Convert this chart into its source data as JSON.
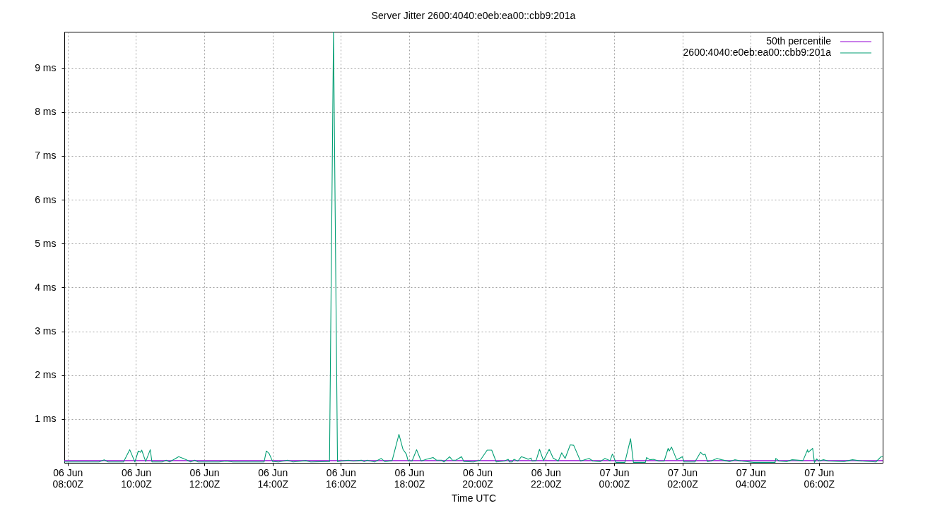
{
  "chart_data": {
    "type": "line",
    "title": "Server Jitter 2600:4040:e0eb:ea00::cbb9:201a",
    "xlabel": "Time UTC",
    "xlim": [
      "--06-06T07:54",
      "--06-07T07:52"
    ],
    "xticks": [
      {
        "value": "--06-06T08:00",
        "label": "06 Jun\n08:00Z"
      },
      {
        "value": "--06-06T10:00",
        "label": "06 Jun\n10:00Z"
      },
      {
        "value": "--06-06T12:00",
        "label": "06 Jun\n12:00Z"
      },
      {
        "value": "--06-06T14:00",
        "label": "06 Jun\n14:00Z"
      },
      {
        "value": "--06-06T16:00",
        "label": "06 Jun\n16:00Z"
      },
      {
        "value": "--06-06T18:00",
        "label": "06 Jun\n18:00Z"
      },
      {
        "value": "--06-06T20:00",
        "label": "06 Jun\n20:00Z"
      },
      {
        "value": "--06-06T22:00",
        "label": "06 Jun\n22:00Z"
      },
      {
        "value": "--06-07T00:00",
        "label": "07 Jun\n00:00Z"
      },
      {
        "value": "--06-07T02:00",
        "label": "07 Jun\n02:00Z"
      },
      {
        "value": "--06-07T04:00",
        "label": "07 Jun\n04:00Z"
      },
      {
        "value": "--06-07T06:00",
        "label": "07 Jun\n06:00Z"
      }
    ],
    "ylim": [
      0,
      9.83
    ],
    "yticks": [
      {
        "value": 1,
        "label": "1 ms"
      },
      {
        "value": 2,
        "label": "2 ms"
      },
      {
        "value": 3,
        "label": "3 ms"
      },
      {
        "value": 4,
        "label": "4 ms"
      },
      {
        "value": 5,
        "label": "5 ms"
      },
      {
        "value": 6,
        "label": "6 ms"
      },
      {
        "value": 7,
        "label": "7 ms"
      },
      {
        "value": 8,
        "label": "8 ms"
      },
      {
        "value": 9,
        "label": "9 ms"
      }
    ],
    "grid": true,
    "legend": "top right",
    "series": [
      {
        "name": "50th percentile",
        "color": "#9400d3",
        "x": [
          "--06-06T07:54",
          "--06-07T07:52"
        ],
        "values": [
          0.05,
          0.05
        ]
      },
      {
        "name": "2600:4040:e0eb:ea00::cbb9:201a",
        "color": "#009e73",
        "x": [
          "--06-06T07:54",
          "--06-06T08:55",
          "--06-06T09:04",
          "--06-06T09:11",
          "--06-06T09:38",
          "--06-06T09:49",
          "--06-06T09:58",
          "--06-06T10:04",
          "--06-06T10:08",
          "--06-06T10:10",
          "--06-06T10:17",
          "--06-06T10:25",
          "--06-06T10:28",
          "--06-06T10:46",
          "--06-06T10:53",
          "--06-06T10:59",
          "--06-06T11:15",
          "--06-06T11:23",
          "--06-06T11:30",
          "--06-06T11:36",
          "--06-06T11:43",
          "--06-06T11:49",
          "--06-06T12:26",
          "--06-06T12:38",
          "--06-06T12:50",
          "--06-06T13:45",
          "--06-06T13:49",
          "--06-06T13:54",
          "--06-06T14:00",
          "--06-06T14:11",
          "--06-06T14:26",
          "--06-06T14:36",
          "--06-06T14:58",
          "--06-06T15:07",
          "--06-06T15:40",
          "--06-06T15:47",
          "--06-06T15:54",
          "--06-06T16:13",
          "--06-06T16:22",
          "--06-06T16:36",
          "--06-06T16:41",
          "--06-06T16:46",
          "--06-06T16:59",
          "--06-06T17:11",
          "--06-06T17:17",
          "--06-06T17:30",
          "--06-06T17:42",
          "--06-06T17:49",
          "--06-06T17:55",
          "--06-06T17:58",
          "--06-06T18:05",
          "--06-06T18:13",
          "--06-06T18:21",
          "--06-06T18:30",
          "--06-06T18:42",
          "--06-06T18:48",
          "--06-06T18:57",
          "--06-06T19:01",
          "--06-06T19:11",
          "--06-06T19:16",
          "--06-06T19:22",
          "--06-06T19:32",
          "--06-06T19:36",
          "--06-06T19:53",
          "--06-06T20:05",
          "--06-06T20:17",
          "--06-06T20:25",
          "--06-06T20:33",
          "--06-06T20:47",
          "--06-06T20:54",
          "--06-06T20:56",
          "--06-06T21:01",
          "--06-06T21:04",
          "--06-06T21:11",
          "--06-06T21:17",
          "--06-06T21:26",
          "--06-06T21:29",
          "--06-06T21:34",
          "--06-06T21:36",
          "--06-06T21:43",
          "--06-06T21:49",
          "--06-06T21:56",
          "--06-06T22:06",
          "--06-06T22:13",
          "--06-06T22:22",
          "--06-06T22:28",
          "--06-06T22:34",
          "--06-06T22:43",
          "--06-06T22:49",
          "--06-06T23:01",
          "--06-06T23:16",
          "--06-06T23:23",
          "--06-06T23:36",
          "--06-06T23:44",
          "--06-06T23:53",
          "--06-06T23:57",
          "--06-06T23:59",
          "--06-07T00:03",
          "--06-07T00:19",
          "--06-07T00:29",
          "--06-07T00:34",
          "--06-07T00:55",
          "--06-07T00:57",
          "--06-07T01:03",
          "--06-07T01:09",
          "--06-07T01:19",
          "--06-07T01:28",
          "--06-07T01:35",
          "--06-07T01:37",
          "--06-07T01:41",
          "--06-07T01:50",
          "--06-07T02:00",
          "--06-07T02:03",
          "--06-07T02:22",
          "--06-07T02:32",
          "--06-07T02:37",
          "--06-07T02:40",
          "--06-07T02:44",
          "--06-07T02:50",
          "--06-07T03:01",
          "--06-07T03:09",
          "--06-07T03:23",
          "--06-07T03:32",
          "--06-07T03:44",
          "--06-07T04:05",
          "--06-07T04:43",
          "--06-07T04:44",
          "--06-07T04:50",
          "--06-07T05:03",
          "--06-07T05:13",
          "--06-07T05:32",
          "--06-07T05:40",
          "--06-07T05:41",
          "--06-07T05:49",
          "--06-07T05:52",
          "--06-07T05:56",
          "--06-07T06:00",
          "--06-07T06:08",
          "--06-07T06:17",
          "--06-07T06:44",
          "--06-07T06:59",
          "--06-07T07:16",
          "--06-07T07:40",
          "--06-07T07:49",
          "--06-07T07:52"
        ],
        "values": [
          0.02,
          0.02,
          0.07,
          0.02,
          0.02,
          0.3,
          0.02,
          0.27,
          0.24,
          0.29,
          0.03,
          0.3,
          0.02,
          0.02,
          0.06,
          0.02,
          0.14,
          0.1,
          0.06,
          0.02,
          0.06,
          0.02,
          0.02,
          0.04,
          0.02,
          0.02,
          0.27,
          0.21,
          0.03,
          0.02,
          0.06,
          0.02,
          0.05,
          0.02,
          0.03,
          9.83,
          0.03,
          0.06,
          0.04,
          0.06,
          0.03,
          0.06,
          0.02,
          0.1,
          0.03,
          0.05,
          0.65,
          0.31,
          0.2,
          0.05,
          0.04,
          0.3,
          0.04,
          0.08,
          0.12,
          0.06,
          0.06,
          0.02,
          0.14,
          0.06,
          0.06,
          0.14,
          0.03,
          0.02,
          0.06,
          0.29,
          0.29,
          0.02,
          0.04,
          0.08,
          0.02,
          0.02,
          0.08,
          0.04,
          0.14,
          0.1,
          0.08,
          0.11,
          0.04,
          0.05,
          0.31,
          0.05,
          0.31,
          0.11,
          0.04,
          0.23,
          0.1,
          0.41,
          0.4,
          0.04,
          0.1,
          0.04,
          0.03,
          0.1,
          0.05,
          0.2,
          0.15,
          0.01,
          0.01,
          0.55,
          0.01,
          0.01,
          0.12,
          0.07,
          0.08,
          0.04,
          0.04,
          0.33,
          0.27,
          0.36,
          0.07,
          0.14,
          0.02,
          0.02,
          0.24,
          0.18,
          0.2,
          0.03,
          0.04,
          0.1,
          0.07,
          0.03,
          0.07,
          0.04,
          0.01,
          0.01,
          0.1,
          0.04,
          0.03,
          0.07,
          0.05,
          0.3,
          0.24,
          0.33,
          0.01,
          0.09,
          0.04,
          0.07,
          0.04,
          0.03,
          0.07,
          0.04,
          0.02,
          0.14,
          0.14
        ]
      }
    ]
  }
}
